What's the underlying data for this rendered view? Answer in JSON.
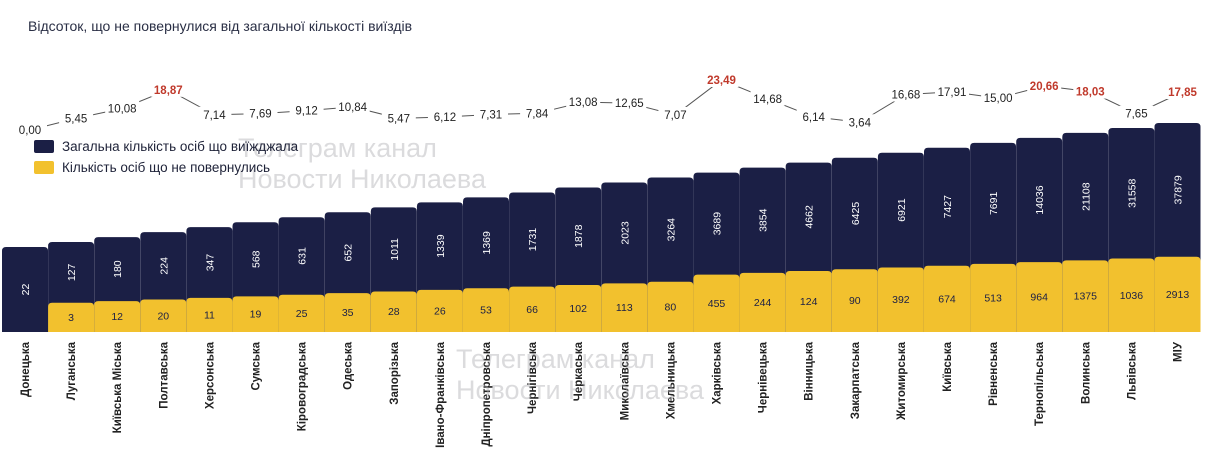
{
  "chart_data": {
    "type": "bar",
    "title": "Відсоток, що не повернулися від загальної кількості виїздів",
    "categories": [
      "Донецька",
      "Луганська",
      "Київська Міська",
      "Полтавська",
      "Херсонська",
      "Сумська",
      "Кіровоградська",
      "Одеська",
      "Запорізька",
      "Івано-Франківська",
      "Дніпропетровська",
      "Чернігівська",
      "Черкаська",
      "Миколаївська",
      "Хмельницька",
      "Харківська",
      "Чернівецька",
      "Вінницька",
      "Закарпатська",
      "Житомирська",
      "Київська",
      "Рівненська",
      "Тернопільська",
      "Волинська",
      "Львівська",
      "МІУ"
    ],
    "series": [
      {
        "name": "Загальна кількість осіб що виїжджала",
        "values": [
          22,
          127,
          180,
          224,
          347,
          568,
          631,
          652,
          1011,
          1339,
          1369,
          1731,
          1878,
          2023,
          3264,
          3689,
          3854,
          4662,
          6425,
          6921,
          7427,
          7691,
          14036,
          21108,
          31558,
          37879
        ]
      },
      {
        "name": "Кількість осіб що не повернулись",
        "values": [
          null,
          3,
          12,
          20,
          11,
          19,
          25,
          35,
          28,
          26,
          53,
          66,
          102,
          113,
          80,
          455,
          244,
          124,
          90,
          392,
          674,
          513,
          964,
          1375,
          1036,
          2913
        ]
      }
    ],
    "percent_line": {
      "values": [
        "0,00",
        "5,45",
        "10,08",
        "18,87",
        "7,14",
        "7,69",
        "9,12",
        "10,84",
        "5,47",
        "6,12",
        "7,31",
        "7,84",
        "13,08",
        "12,65",
        "7,07",
        "23,49",
        "14,68",
        "6,14",
        "3,64",
        "16,68",
        "17,91",
        "15,00",
        "20,66",
        "18,03",
        "7,65",
        "17,85"
      ],
      "highlighted": [
        false,
        false,
        false,
        true,
        false,
        false,
        false,
        false,
        false,
        false,
        false,
        false,
        false,
        false,
        false,
        true,
        false,
        false,
        false,
        false,
        false,
        false,
        true,
        true,
        false,
        true
      ]
    },
    "legend_position": "top-left",
    "grid": false,
    "colors": {
      "total": "#1b1f45",
      "not_returned": "#f2c12e",
      "highlight": "#c0392b",
      "text": "#222222",
      "line": "#555555"
    }
  },
  "watermarks": {
    "top": [
      "Телеграм канал",
      "Новости Николаева"
    ],
    "bottom": [
      "Телеграм канал",
      "Новости Николаева"
    ]
  }
}
